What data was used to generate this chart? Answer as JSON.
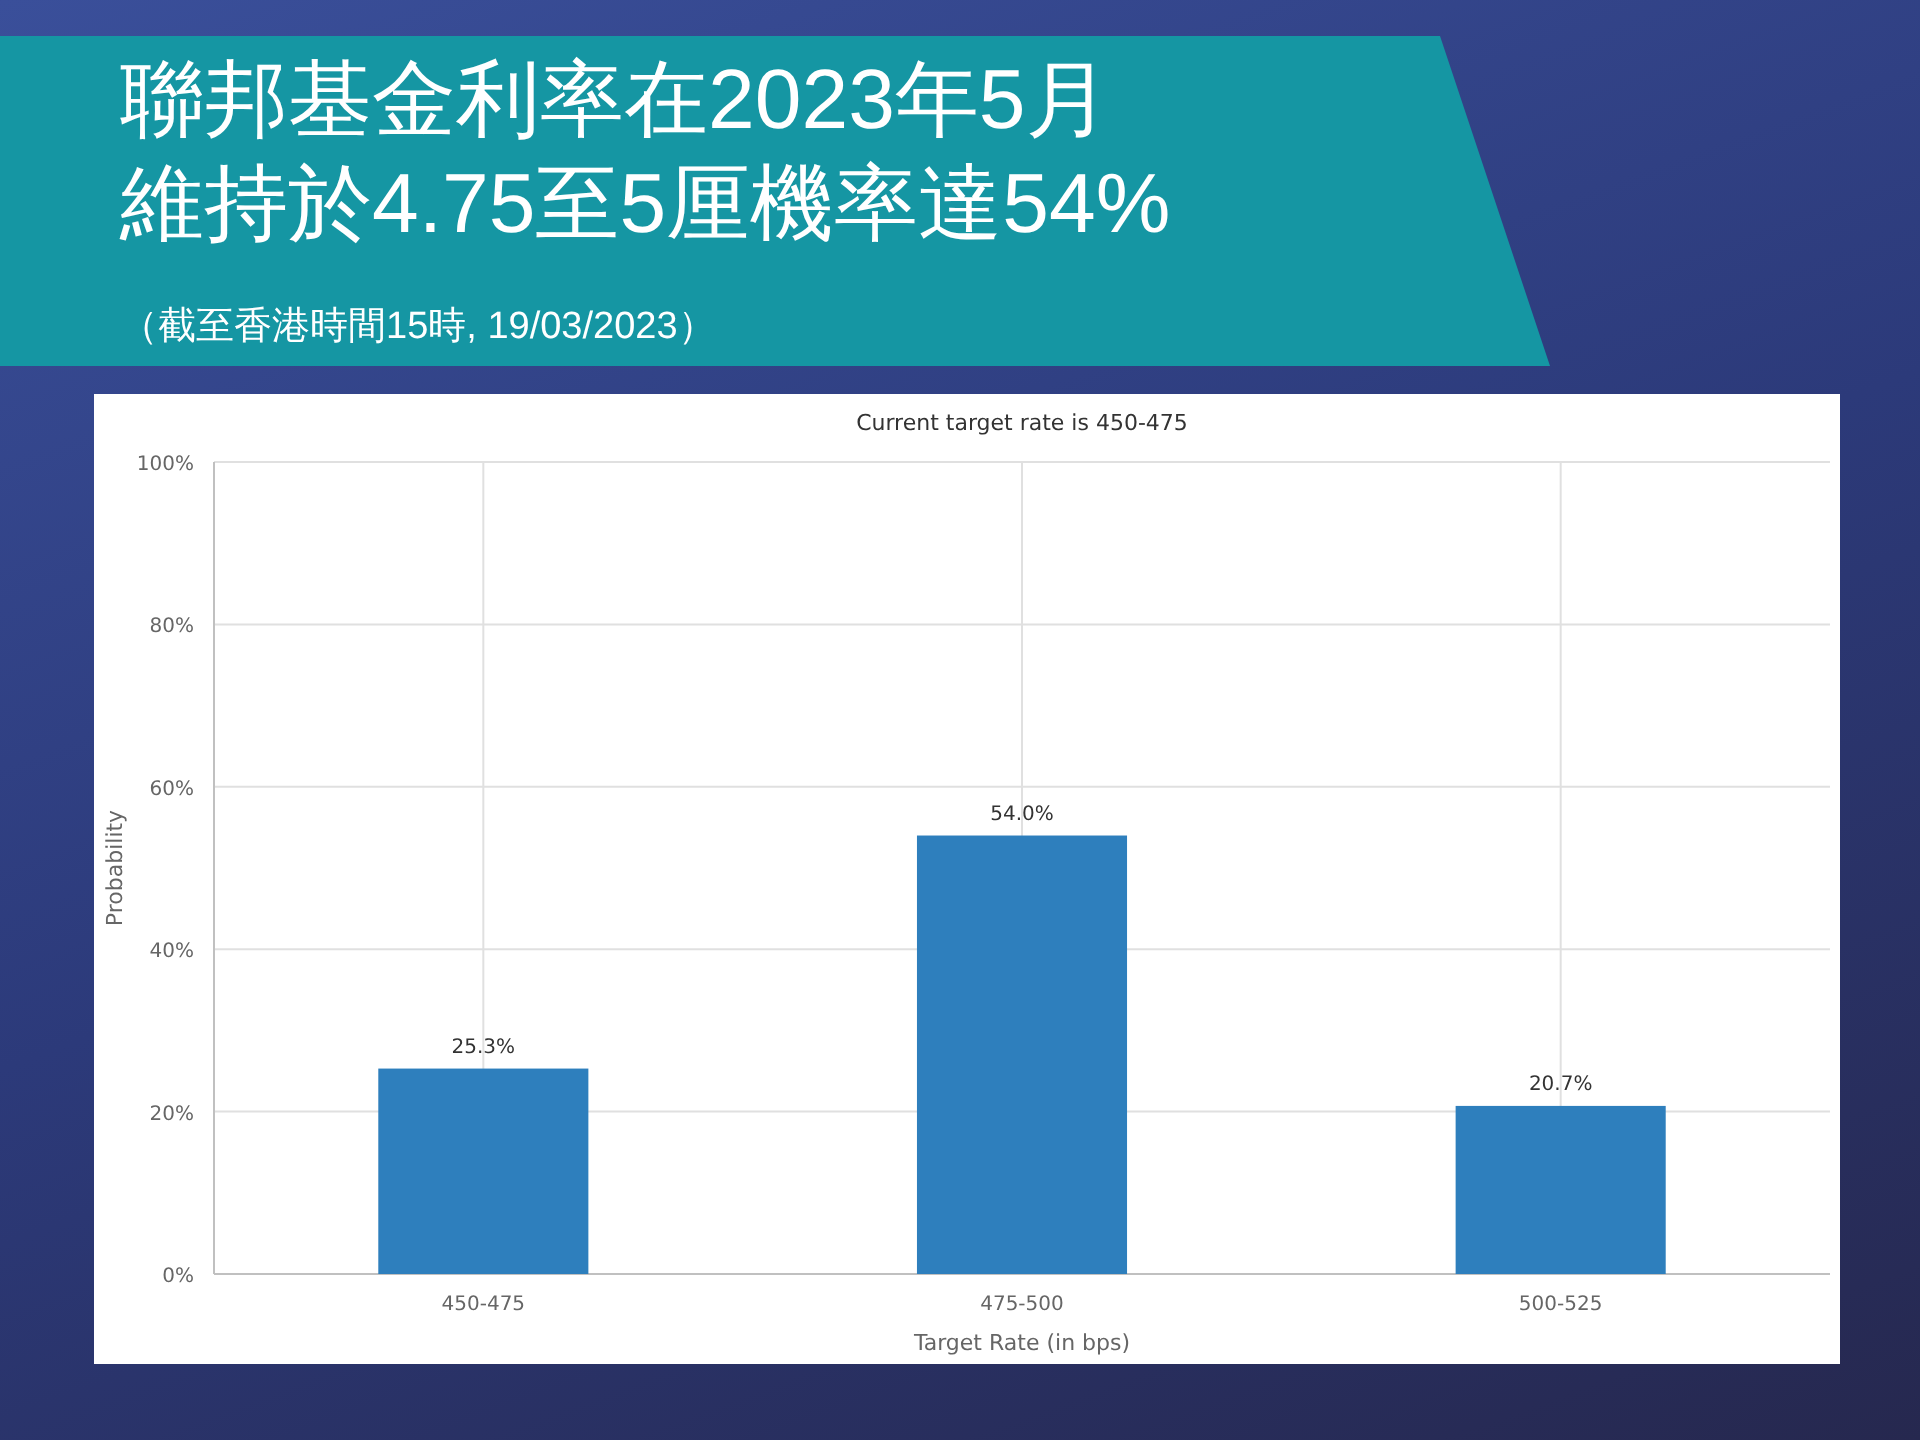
{
  "chart_data": {
    "type": "bar",
    "title": "聯邦基金利率在2023年5月維持於4.75至5厘機率達54%",
    "annotations": [
      "（截至香港時間15時, 19/03/2023）"
    ],
    "subtitle": "Current target rate is 450-475",
    "xlabel": "Target Rate (in bps)",
    "ylabel": "Probability",
    "categories": [
      "450-475",
      "475-500",
      "500-525"
    ],
    "values": [
      25.3,
      54.0,
      20.7
    ],
    "value_labels": [
      "25.3%",
      "54.0%",
      "20.7%"
    ],
    "color": "#2e7fbd",
    "ylim": [
      0,
      100
    ],
    "yticks": [
      {
        "value": 0,
        "label": "0%"
      },
      {
        "value": 20,
        "label": "20%"
      },
      {
        "value": 40,
        "label": "40%"
      },
      {
        "value": 60,
        "label": "60%"
      },
      {
        "value": 80,
        "label": "80%"
      },
      {
        "value": 100,
        "label": "100%"
      }
    ],
    "grid": true
  }
}
